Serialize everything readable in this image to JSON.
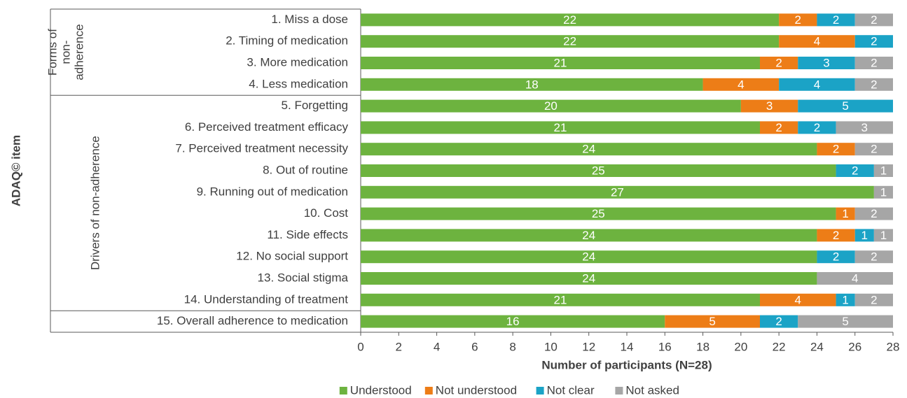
{
  "chart_data": {
    "type": "stacked_barh",
    "ylabel": "ADAQ© item",
    "xlabel": "Number of participants (N=28)",
    "groups": [
      [
        "Forms of",
        "non-",
        "adherence"
      ],
      [
        "Drivers of non-adherence"
      ]
    ],
    "categories": [
      "1. Miss a dose",
      "2. Timing of medication",
      "3. More medication",
      "4. Less medication",
      "5. Forgetting",
      "6. Perceived treatment efficacy",
      "7. Perceived treatment necessity",
      "8. Out of routine",
      "9. Running out of medication",
      "10. Cost",
      "11. Side effects",
      "12. No social support",
      "13. Social stigma",
      "14. Understanding of treatment",
      "15. Overall adherence to medication"
    ],
    "series": [
      {
        "name": "Understood",
        "color": "#6db33f",
        "values": [
          22,
          22,
          21,
          18,
          20,
          21,
          24,
          25,
          27,
          25,
          24,
          24,
          24,
          21,
          16
        ]
      },
      {
        "name": "Not understood",
        "color": "#ed7d17",
        "values": [
          2,
          4,
          2,
          4,
          3,
          2,
          2,
          null,
          null,
          1,
          2,
          null,
          null,
          4,
          5
        ]
      },
      {
        "name": "Not clear",
        "color": "#1ba3c6",
        "values": [
          2,
          2,
          3,
          4,
          5,
          2,
          null,
          2,
          null,
          null,
          1,
          2,
          null,
          1,
          2
        ]
      },
      {
        "name": "Not asked",
        "color": "#a6a6a6",
        "values": [
          2,
          null,
          2,
          2,
          null,
          3,
          2,
          1,
          1,
          2,
          1,
          2,
          4,
          2,
          5
        ]
      }
    ],
    "xlim": [
      0,
      28
    ],
    "xticks": [
      0,
      2,
      4,
      6,
      8,
      10,
      12,
      14,
      16,
      18,
      20,
      22,
      24,
      26,
      28
    ],
    "legend": "bottom"
  }
}
